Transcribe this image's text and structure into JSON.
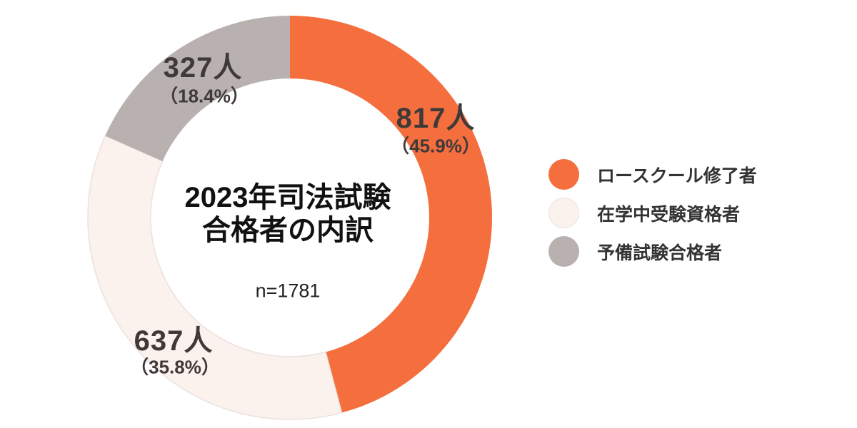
{
  "chart_data": {
    "type": "pie",
    "subtype": "donut",
    "title": "2023年司法試験 合格者の内訳",
    "title_lines": [
      "2023年司法試験",
      "合格者の内訳"
    ],
    "n_label": "n=1781",
    "total": 1781,
    "units": "人",
    "start_angle_deg": 0,
    "direction": "clockwise",
    "legend_position": "right",
    "background_color": "#ffffff",
    "segments": [
      {
        "label": "ロースクール修了者",
        "value": 817,
        "percent": 45.9,
        "value_label": "817人",
        "percent_label": "（45.9%）",
        "color": "#F46E3E"
      },
      {
        "label": "在学中受験資格者",
        "value": 637,
        "percent": 35.8,
        "value_label": "637人",
        "percent_label": "（35.8%）",
        "color": "#FBF2EE",
        "border_color": "#EBE1DD"
      },
      {
        "label": "予備試験合格者",
        "value": 327,
        "percent": 18.4,
        "value_label": "327人",
        "percent_label": "（18.4%）",
        "color": "#B9B1B0"
      }
    ],
    "text_colors": {
      "slice_labels": "#3F3A39",
      "center_title": "#111111",
      "n_label": "#222222",
      "legend": "#333333"
    }
  }
}
